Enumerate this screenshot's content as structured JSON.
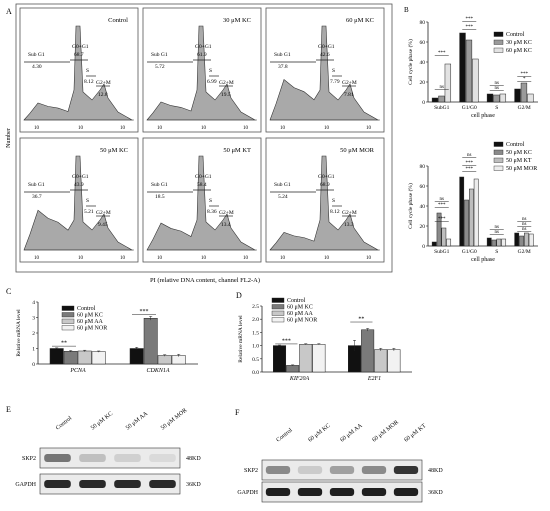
{
  "panel_letters": {
    "A": "A",
    "B": "B",
    "C": "C",
    "D": "D",
    "E": "E",
    "F": "F"
  },
  "flow": {
    "y_axis_label": "Number",
    "x_axis_label": "PI (relative DNA content,  channel FL2-A)",
    "panels": [
      {
        "title": "Control",
        "subg1": "4.30",
        "g0g1": "68.7",
        "s": "8.12",
        "g2m": "12.8"
      },
      {
        "title": "30 μM KC",
        "subg1": "5.72",
        "g0g1": "61.9",
        "s": "6.99",
        "g2m": "19.5"
      },
      {
        "title": "60 μM KC",
        "subg1": "37.8",
        "g0g1": "42.6",
        "s": "7.79",
        "g2m": "7.81"
      },
      {
        "title": "50 μM KC",
        "subg1": "36.7",
        "g0g1": "43.9",
        "s": "5.21",
        "g2m": "9.45"
      },
      {
        "title": "50 μM KT",
        "subg1": "18.5",
        "g0g1": "58.4",
        "s": "8.36",
        "g2m": "13.4"
      },
      {
        "title": "50 μM MOR",
        "subg1": "5.24",
        "g0g1": "68.9",
        "s": "8.12",
        "g2m": "13.3"
      }
    ],
    "labels": {
      "subg1": "Sub G1",
      "g0g1": "G0+G1",
      "s": "S",
      "g2m": "G2+M"
    }
  },
  "chart_data": [
    {
      "type": "bar",
      "id": "B-top",
      "ylabel": "Cell cycle phase (%)",
      "xlabel": "cell phase",
      "ylim": [
        0,
        80
      ],
      "yticks": [
        0,
        20,
        40,
        60,
        80
      ],
      "categories": [
        "SubG1",
        "G1/G0",
        "S",
        "G2/M"
      ],
      "colors": [
        "#111111",
        "#9a9a9a",
        "#e2e2e2"
      ],
      "series": [
        {
          "name": "Control",
          "values": [
            4,
            69,
            8,
            13
          ]
        },
        {
          "name": "30 μM KC",
          "values": [
            6,
            62,
            7,
            19
          ]
        },
        {
          "name": "60 μM KC",
          "values": [
            38,
            43,
            8,
            8
          ]
        }
      ],
      "sig": [
        [
          "SubG1",
          "***"
        ],
        [
          "G1/G0",
          "***"
        ],
        [
          "G1/G0",
          "***"
        ],
        [
          "S",
          "ns"
        ],
        [
          "S",
          "ns"
        ],
        [
          "G2/M",
          "*"
        ],
        [
          "G2/M",
          "***"
        ],
        [
          "SubG1",
          "ns"
        ]
      ]
    },
    {
      "type": "bar",
      "id": "B-bottom",
      "ylabel": "Cell cycle phase (%)",
      "xlabel": "cell phase",
      "ylim": [
        0,
        80
      ],
      "yticks": [
        0,
        20,
        40,
        60,
        80
      ],
      "categories": [
        "SubG1",
        "G1/G0",
        "S",
        "G2/M"
      ],
      "colors": [
        "#111111",
        "#8a8a8a",
        "#bdbdbd",
        "#ededed"
      ],
      "series": [
        {
          "name": "Control",
          "values": [
            4,
            69,
            8,
            13
          ]
        },
        {
          "name": "50 μM KC",
          "values": [
            33,
            46,
            6,
            10
          ]
        },
        {
          "name": "50 μM KT",
          "values": [
            18,
            57,
            7,
            13
          ]
        },
        {
          "name": "50 μM MOR",
          "values": [
            7,
            67,
            7,
            12
          ]
        }
      ],
      "sig": [
        [
          "SubG1",
          "***"
        ],
        [
          "SubG1",
          "ns"
        ],
        [
          "SubG1",
          "***"
        ],
        [
          "G1/G0",
          "***"
        ],
        [
          "G1/G0",
          "***"
        ],
        [
          "G1/G0",
          "ns"
        ],
        [
          "S",
          "ns"
        ],
        [
          "S",
          "ns"
        ],
        [
          "G2/M",
          "ns"
        ],
        [
          "G2/M",
          "ns"
        ],
        [
          "G2/M",
          "ns"
        ]
      ]
    },
    {
      "type": "bar",
      "id": "C",
      "ylabel": "Relative mRNA level",
      "xlabel": "",
      "ylim": [
        0,
        4
      ],
      "yticks": [
        0,
        1,
        2,
        3,
        4
      ],
      "categories": [
        "PCNA",
        "CDKN1A"
      ],
      "colors": [
        "#111111",
        "#7a7a7a",
        "#c8c8c8",
        "#f2f2f2"
      ],
      "series": [
        {
          "name": "Control",
          "values": [
            1.0,
            1.0
          ]
        },
        {
          "name": "60 μM KC",
          "values": [
            0.82,
            2.95
          ]
        },
        {
          "name": "60 μM AA",
          "values": [
            0.84,
            0.55
          ]
        },
        {
          "name": "60 μM NOR",
          "values": [
            0.8,
            0.55
          ]
        }
      ],
      "errors": [
        [
          0.04,
          0.08
        ],
        [
          0.05,
          0.12
        ],
        [
          0.05,
          0.05
        ],
        [
          0.04,
          0.08
        ]
      ]
    },
    {
      "type": "bar",
      "id": "D",
      "ylabel": "Relative mRNA level",
      "xlabel": "",
      "ylim": [
        0,
        2.5
      ],
      "yticks": [
        0.0,
        0.5,
        1.0,
        1.5,
        2.0,
        2.5
      ],
      "categories": [
        "KIF20A",
        "E2F1"
      ],
      "colors": [
        "#111111",
        "#7a7a7a",
        "#c8c8c8",
        "#f2f2f2"
      ],
      "series": [
        {
          "name": "Control",
          "values": [
            1.0,
            1.0
          ]
        },
        {
          "name": "60 μM KC",
          "values": [
            0.25,
            1.6
          ]
        },
        {
          "name": "60 μM AA",
          "values": [
            1.05,
            0.85
          ]
        },
        {
          "name": "60 μM NOR",
          "values": [
            1.05,
            0.85
          ]
        }
      ],
      "errors": [
        [
          0.02,
          0.2
        ],
        [
          0.02,
          0.05
        ],
        [
          0.02,
          0.05
        ],
        [
          0.02,
          0.05
        ]
      ]
    }
  ],
  "c_sig": [
    "**",
    "***"
  ],
  "d_sig": [
    "***",
    "**"
  ],
  "ticklabels_c": [
    "0",
    "1",
    "2",
    "3",
    "4"
  ],
  "ticklabels_d": [
    "0.0",
    "0.5",
    "1.0",
    "1.5",
    "2.0",
    "2.5"
  ],
  "blot_e": {
    "lanes": [
      "Control",
      "50 μM KC",
      "50 μM AA",
      "50 μM MOR"
    ],
    "bands": [
      "SKP2",
      "GAPDH"
    ],
    "sizes": [
      "48KD",
      "36KD"
    ]
  },
  "blot_f": {
    "lanes": [
      "Control",
      "60 μM KC",
      "60 μM AA",
      "60 μM MOR",
      "60 μM KT"
    ],
    "bands": [
      "SKP2",
      "GAPDH"
    ],
    "sizes": [
      "48KD",
      "36KD"
    ]
  },
  "x_tick": "10"
}
